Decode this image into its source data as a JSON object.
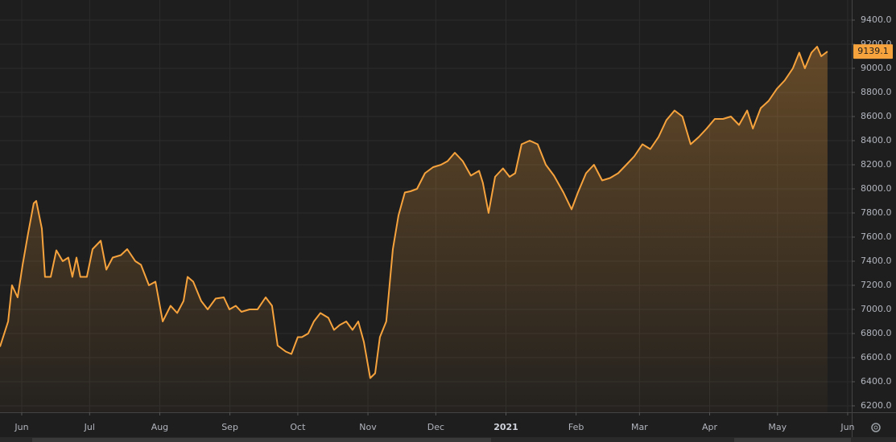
{
  "chart_data": {
    "type": "area",
    "color": "#f7a33d",
    "grid": true,
    "x": [
      -9.6,
      -6.0,
      -4.3,
      -1.8,
      0.4,
      2.8,
      5.3,
      6.4,
      8.9,
      10.3,
      12.8,
      15.3,
      18.1,
      20.6,
      22.4,
      24.2,
      25.9,
      28.8,
      31.3,
      34.9,
      37.4,
      40.2,
      43.8,
      46.6,
      50.2,
      52.7,
      56.2,
      59.1,
      62.3,
      65.8,
      68.7,
      71.5,
      73.3,
      75.8,
      79.3,
      82.2,
      85.7,
      89.3,
      91.8,
      94.6,
      97.1,
      100.7,
      104.2,
      107.8,
      110.6,
      113.1,
      116.7,
      119.2,
      122.0,
      123.8,
      126.6,
      129.1,
      132.0,
      135.5,
      138.0,
      140.5,
      143.4,
      146.2,
      148.7,
      151.2,
      154.0,
      156.2,
      158.3,
      161.1,
      164.0,
      166.5,
      169.3,
      171.8,
      174.7,
      178.2,
      181.8,
      185.3,
      188.2,
      191.4,
      194.9,
      198.5,
      202.1,
      203.8,
      206.3,
      209.2,
      212.7,
      215.6,
      218.1,
      220.9,
      224.5,
      228.0,
      231.6,
      235.2,
      239.4,
      243.0,
      245.8,
      249.4,
      252.9,
      256.5,
      260.0,
      263.6,
      267.2,
      270.7,
      274.3,
      277.8,
      281.4,
      284.9,
      288.5,
      292.0,
      295.6,
      299.2,
      302.7,
      306.3,
      309.9,
      313.4,
      317.0,
      320.6,
      323.1,
      326.6,
      330.1,
      333.7,
      337.2,
      340.8,
      343.6,
      346.1,
      349.0,
      351.5,
      353.3,
      356.1
    ],
    "values": [
      6690,
      6900,
      7200,
      7100,
      7370,
      7630,
      7880,
      7900,
      7670,
      7270,
      7270,
      7490,
      7400,
      7430,
      7270,
      7430,
      7270,
      7270,
      7500,
      7570,
      7330,
      7430,
      7450,
      7500,
      7400,
      7370,
      7200,
      7230,
      6900,
      7030,
      6970,
      7070,
      7270,
      7230,
      7070,
      7000,
      7090,
      7100,
      7000,
      7030,
      6980,
      7000,
      7000,
      7100,
      7030,
      6700,
      6650,
      6630,
      6770,
      6770,
      6800,
      6900,
      6970,
      6930,
      6830,
      6870,
      6900,
      6830,
      6900,
      6730,
      6430,
      6470,
      6770,
      6900,
      7500,
      7780,
      7970,
      7980,
      8000,
      8130,
      8180,
      8200,
      8230,
      8300,
      8230,
      8110,
      8150,
      8050,
      7800,
      8100,
      8170,
      8100,
      8130,
      8370,
      8400,
      8370,
      8200,
      8110,
      7970,
      7830,
      7970,
      8130,
      8200,
      8070,
      8090,
      8130,
      8200,
      8270,
      8370,
      8330,
      8430,
      8570,
      8650,
      8600,
      8370,
      8430,
      8500,
      8580,
      8580,
      8600,
      8530,
      8650,
      8500,
      8670,
      8730,
      8830,
      8900,
      9000,
      9130,
      9000,
      9130,
      9180,
      9100,
      9139.1
    ],
    "xlim": [
      -9.6,
      366.8
    ],
    "xticks": [
      {
        "value": 0,
        "label": "Jun"
      },
      {
        "value": 30,
        "label": "Jul"
      },
      {
        "value": 61,
        "label": "Aug"
      },
      {
        "value": 92,
        "label": "Sep"
      },
      {
        "value": 122,
        "label": "Oct"
      },
      {
        "value": 153,
        "label": "Nov"
      },
      {
        "value": 183,
        "label": "Dec"
      },
      {
        "value": 214,
        "label": "2021"
      },
      {
        "value": 245,
        "label": "Feb"
      },
      {
        "value": 273,
        "label": "Mar"
      },
      {
        "value": 304,
        "label": "Apr"
      },
      {
        "value": 334,
        "label": "May"
      },
      {
        "value": 365,
        "label": "Jun"
      }
    ],
    "ylim": [
      6146.7,
      9566.7
    ],
    "yticks": [
      {
        "value": 6200,
        "label": "6200.0"
      },
      {
        "value": 6400,
        "label": "6400.0"
      },
      {
        "value": 6600,
        "label": "6600.0"
      },
      {
        "value": 6800,
        "label": "6800.0"
      },
      {
        "value": 7000,
        "label": "7000.0"
      },
      {
        "value": 7200,
        "label": "7200.0"
      },
      {
        "value": 7400,
        "label": "7400.0"
      },
      {
        "value": 7600,
        "label": "7600.0"
      },
      {
        "value": 7800,
        "label": "7800.0"
      },
      {
        "value": 8000,
        "label": "8000.0"
      },
      {
        "value": 8200,
        "label": "8200.0"
      },
      {
        "value": 8400,
        "label": "8400.0"
      },
      {
        "value": 8600,
        "label": "8600.0"
      },
      {
        "value": 8800,
        "label": "8800.0"
      },
      {
        "value": 9000,
        "label": "9000.0"
      },
      {
        "value": 9200,
        "label": "9200.0"
      },
      {
        "value": 9400,
        "label": "9400.0"
      }
    ]
  }
}
